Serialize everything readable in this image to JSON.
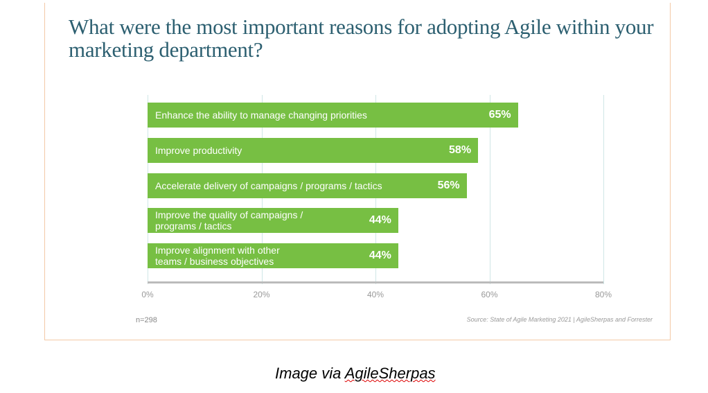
{
  "chart_data": {
    "type": "bar",
    "orientation": "horizontal",
    "title": "What were the most important reasons for adopting Agile within your marketing department?",
    "categories": [
      "Enhance the ability to manage changing priorities",
      "Improve productivity",
      "Accelerate delivery of campaigns / programs / tactics",
      "Improve the quality of campaigns /\nprograms / tactics",
      "Improve alignment with other\nteams / business objectives"
    ],
    "values": [
      65,
      58,
      56,
      44,
      44
    ],
    "value_labels": [
      "65%",
      "58%",
      "56%",
      "44%",
      "44%"
    ],
    "xlim": [
      0,
      80
    ],
    "x_ticks": [
      0,
      20,
      40,
      60,
      80
    ],
    "x_tick_labels": [
      "0%",
      "20%",
      "40%",
      "60%",
      "80%"
    ],
    "grid": true,
    "bar_color": "#77bf43",
    "note": "n=298",
    "source": "Source: State of Agile Marketing 2021 | AgileSherpas and Forrester"
  },
  "caption": {
    "prefix": "Image via ",
    "brand": "AgileSherpas"
  }
}
